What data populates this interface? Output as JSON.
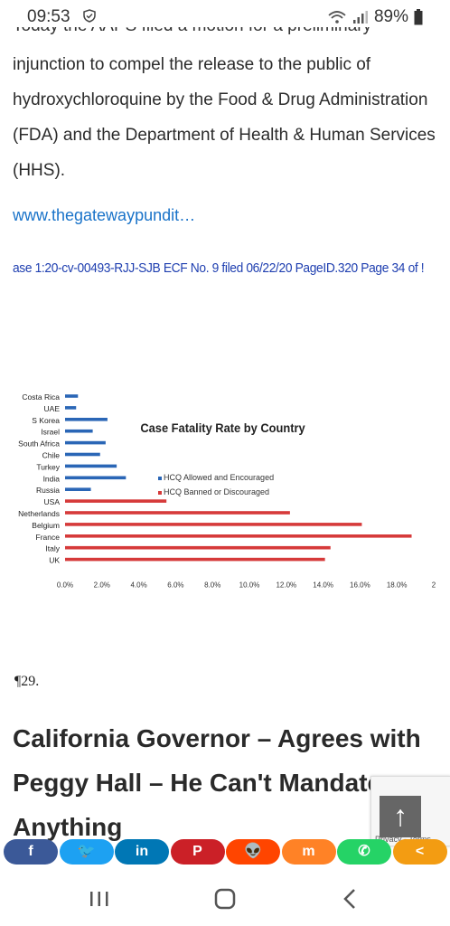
{
  "status_bar": {
    "time": "09:53",
    "battery": "89%"
  },
  "article": {
    "cut_text": "Today the AAPS filed a motion for a preliminary",
    "paragraph": "injunction to compel the release to the public of hydroxychloroquine by the Food & Drug Administration (FDA) and the Department of Health & Human Services (HHS).",
    "link": "www.thegatewaypundit…",
    "doc_header": "ase 1:20-cv-00493-RJJ-SJB   ECF No. 9 filed 06/22/20   PageID.320   Page 34 of !",
    "paragraph_mark": "¶29.",
    "heading": "California Governor – Agrees with Peggy Hall – He Can't Mandate Anything"
  },
  "chart_data": {
    "type": "bar",
    "title": "Case Fatality Rate by Country",
    "categories": [
      "Costa Rica",
      "UAE",
      "S Korea",
      "Israel",
      "South Africa",
      "Chile",
      "Turkey",
      "India",
      "Russia",
      "USA",
      "Netherlands",
      "Belgium",
      "France",
      "Italy",
      "UK"
    ],
    "values": [
      0.7,
      0.6,
      2.3,
      1.5,
      2.2,
      1.9,
      2.8,
      3.3,
      1.4,
      5.5,
      12.2,
      16.1,
      18.8,
      14.4,
      14.1
    ],
    "groups": [
      "allowed",
      "allowed",
      "allowed",
      "allowed",
      "allowed",
      "allowed",
      "allowed",
      "allowed",
      "allowed",
      "banned",
      "banned",
      "banned",
      "banned",
      "banned",
      "banned"
    ],
    "series": [
      {
        "name": "HCQ Allowed and Encouraged",
        "color": "#2a66b6"
      },
      {
        "name": "HCQ Banned or Discouraged",
        "color": "#d63a3a"
      }
    ],
    "x_ticks": [
      "0.0%",
      "2.0%",
      "4.0%",
      "6.0%",
      "8.0%",
      "10.0%",
      "12.0%",
      "14.0%",
      "16.0%",
      "18.0%",
      "2"
    ],
    "xlim": [
      0,
      20
    ],
    "grid": false,
    "legend": "center"
  },
  "share_bar": {
    "buttons": [
      {
        "name": "facebook",
        "label": "f",
        "color": "#3b5998"
      },
      {
        "name": "twitter",
        "label": "🐦",
        "color": "#1da1f2"
      },
      {
        "name": "linkedin",
        "label": "in",
        "color": "#0077b5"
      },
      {
        "name": "pinterest",
        "label": "P",
        "color": "#cb2027"
      },
      {
        "name": "reddit",
        "label": "👽",
        "color": "#ff4500"
      },
      {
        "name": "mix",
        "label": "m",
        "color": "#ff8226"
      },
      {
        "name": "whatsapp",
        "label": "✆",
        "color": "#25d366"
      },
      {
        "name": "more",
        "label": "<",
        "color": "#f39c12"
      }
    ]
  },
  "recaptcha": {
    "terms": "Privacy - Terms"
  }
}
